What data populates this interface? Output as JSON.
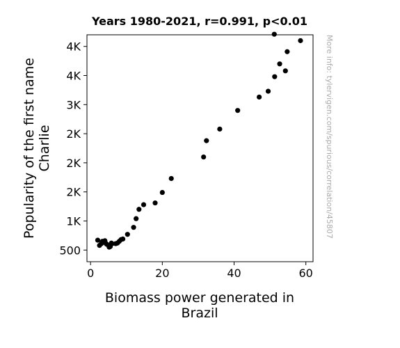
{
  "chart_data": {
    "type": "scatter",
    "title": "Years 1980-2021, r=0.991, p<0.01",
    "xlabel": [
      "Biomass power generated in",
      "Brazil"
    ],
    "ylabel": [
      "Popularity of the first name",
      "Charlie"
    ],
    "watermark": "More info: tylervigen.com/spurious/correlation/45807",
    "xlim": [
      -1,
      62
    ],
    "ylim": [
      300,
      4200
    ],
    "x_ticks": [
      {
        "value": 0,
        "label": "0"
      },
      {
        "value": 20,
        "label": "20"
      },
      {
        "value": 40,
        "label": "40"
      },
      {
        "value": 60,
        "label": "60"
      }
    ],
    "y_ticks": [
      {
        "value": 500,
        "label": "500"
      },
      {
        "value": 1000,
        "label": "1K"
      },
      {
        "value": 1500,
        "label": "2K"
      },
      {
        "value": 2000,
        "label": "2K"
      },
      {
        "value": 2500,
        "label": "2K"
      },
      {
        "value": 3000,
        "label": "3K"
      },
      {
        "value": 3500,
        "label": "4K"
      },
      {
        "value": 4000,
        "label": "4K"
      }
    ],
    "grid": false,
    "marker_color": "#000000",
    "points": [
      {
        "x": 2.0,
        "y": 670
      },
      {
        "x": 2.5,
        "y": 580
      },
      {
        "x": 3.0,
        "y": 610
      },
      {
        "x": 3.3,
        "y": 650
      },
      {
        "x": 3.7,
        "y": 640
      },
      {
        "x": 4.0,
        "y": 660
      },
      {
        "x": 4.2,
        "y": 620
      },
      {
        "x": 4.5,
        "y": 600
      },
      {
        "x": 5.0,
        "y": 580
      },
      {
        "x": 5.2,
        "y": 550
      },
      {
        "x": 5.5,
        "y": 560
      },
      {
        "x": 5.8,
        "y": 620
      },
      {
        "x": 6.0,
        "y": 610
      },
      {
        "x": 7.0,
        "y": 610
      },
      {
        "x": 7.5,
        "y": 620
      },
      {
        "x": 8.0,
        "y": 650
      },
      {
        "x": 8.5,
        "y": 680
      },
      {
        "x": 9.0,
        "y": 690
      },
      {
        "x": 10.3,
        "y": 770
      },
      {
        "x": 12.0,
        "y": 890
      },
      {
        "x": 12.7,
        "y": 1040
      },
      {
        "x": 13.5,
        "y": 1200
      },
      {
        "x": 14.8,
        "y": 1280
      },
      {
        "x": 18.0,
        "y": 1310
      },
      {
        "x": 20.0,
        "y": 1490
      },
      {
        "x": 22.5,
        "y": 1730
      },
      {
        "x": 31.5,
        "y": 2100
      },
      {
        "x": 32.3,
        "y": 2380
      },
      {
        "x": 36.0,
        "y": 2580
      },
      {
        "x": 41.0,
        "y": 2900
      },
      {
        "x": 47.0,
        "y": 3130
      },
      {
        "x": 49.5,
        "y": 3230
      },
      {
        "x": 51.3,
        "y": 3480
      },
      {
        "x": 52.7,
        "y": 3700
      },
      {
        "x": 54.3,
        "y": 3580
      },
      {
        "x": 54.8,
        "y": 3910
      },
      {
        "x": 51.2,
        "y": 4210
      },
      {
        "x": 58.5,
        "y": 4100
      }
    ]
  }
}
